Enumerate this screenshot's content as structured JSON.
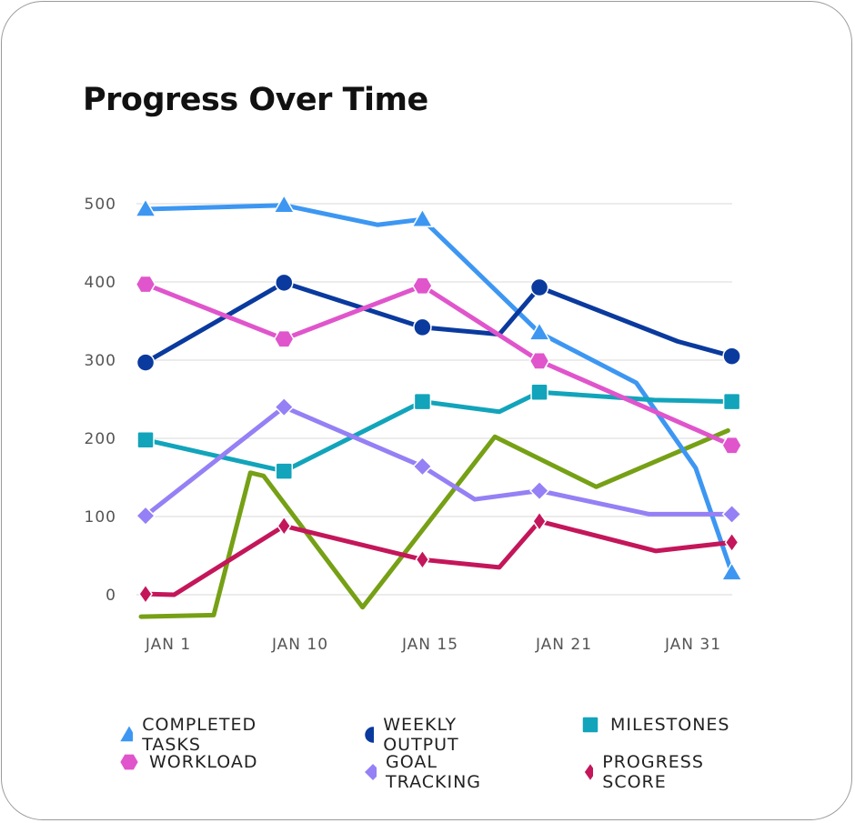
{
  "chart_data": {
    "type": "line",
    "title": "Progress Over Time",
    "xlabel": "",
    "ylabel": "",
    "x_ticks": [
      {
        "day": 1,
        "label": "JAN 1"
      },
      {
        "day": 10,
        "label": "JAN 10"
      },
      {
        "day": 15,
        "label": "JAN 15"
      },
      {
        "day": 21,
        "label": "JAN 21"
      },
      {
        "day": 31,
        "label": "JAN 31"
      }
    ],
    "y_ticks": [
      0,
      100,
      200,
      300,
      400,
      500
    ],
    "ylim": [
      0,
      500
    ],
    "grid": true,
    "legend_position": "bottom",
    "series": [
      {
        "name": "COMPLETED TASKS",
        "color": "#3d97f2",
        "marker": "triangle",
        "points": [
          [
            -0.55,
            493,
            1
          ],
          [
            8.9,
            498,
            1
          ],
          [
            12.97,
            473,
            0
          ],
          [
            14.7,
            480,
            1
          ],
          [
            19.9,
            335,
            1
          ],
          [
            26.6,
            271,
            0
          ],
          [
            31.2,
            162,
            0
          ],
          [
            34.0,
            28,
            1
          ]
        ]
      },
      {
        "name": "WEEKLY OUTPUT",
        "color": "#0a3a9e",
        "marker": "circle",
        "points": [
          [
            -0.55,
            297,
            1
          ],
          [
            8.9,
            399,
            1
          ],
          [
            14.7,
            342,
            1
          ],
          [
            18.1,
            333,
            0
          ],
          [
            19.9,
            393,
            1
          ],
          [
            29.8,
            324,
            0
          ],
          [
            34.0,
            305,
            1
          ]
        ]
      },
      {
        "name": "MILESTONES",
        "color": "#12a4bb",
        "marker": "square",
        "points": [
          [
            -0.55,
            198,
            1
          ],
          [
            8.9,
            158,
            1
          ],
          [
            14.7,
            247,
            1
          ],
          [
            18.1,
            234,
            0
          ],
          [
            19.9,
            259,
            1
          ],
          [
            28.0,
            249,
            0
          ],
          [
            34.0,
            247,
            1
          ]
        ]
      },
      {
        "name": "WORKLOAD",
        "color": "#e055cc",
        "marker": "hexagon",
        "points": [
          [
            -0.55,
            397,
            1
          ],
          [
            8.9,
            327,
            1
          ],
          [
            14.7,
            395,
            1
          ],
          [
            19.9,
            299,
            1
          ],
          [
            34.0,
            191,
            1
          ]
        ]
      },
      {
        "name": "GOAL TRACKING",
        "color": "#9580f5",
        "marker": "diamond",
        "points": [
          [
            -0.55,
            101,
            1
          ],
          [
            8.9,
            240,
            1
          ],
          [
            14.7,
            164,
            1
          ],
          [
            17.0,
            122,
            0
          ],
          [
            19.9,
            133,
            1
          ],
          [
            27.6,
            103,
            0
          ],
          [
            34.0,
            103,
            1
          ]
        ]
      },
      {
        "name": "PROGRESS SCORE",
        "color": "#c4165a",
        "marker": "thin-diamond",
        "points": [
          [
            -0.55,
            1,
            1
          ],
          [
            1.4,
            0,
            0
          ],
          [
            8.9,
            88,
            1
          ],
          [
            14.7,
            45,
            1
          ],
          [
            18.1,
            35,
            0
          ],
          [
            19.9,
            94,
            1
          ],
          [
            28.1,
            56,
            0
          ],
          [
            34.0,
            67,
            1
          ]
        ]
      },
      {
        "color": "#76a015",
        "marker": "none",
        "points": [
          [
            -0.86,
            -28,
            0
          ],
          [
            4.1,
            -26,
            0
          ],
          [
            6.6,
            156,
            0
          ],
          [
            7.5,
            152,
            0
          ],
          [
            12.4,
            -16,
            0
          ],
          [
            17.9,
            202,
            0
          ],
          [
            23.5,
            138,
            0
          ],
          [
            33.7,
            210,
            0
          ]
        ]
      }
    ]
  }
}
